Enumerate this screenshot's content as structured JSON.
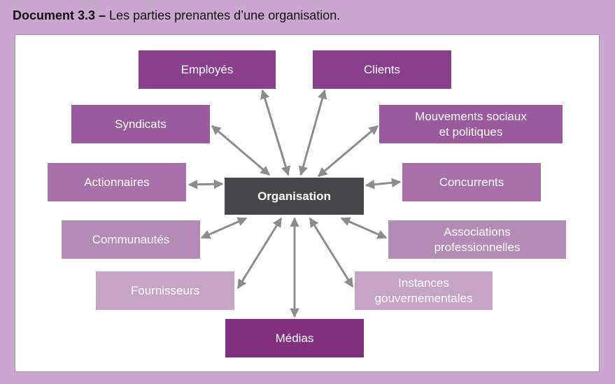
{
  "title": {
    "prefix": "Document 3.3 –",
    "text": " Les parties prenantes d’une organisation."
  },
  "center": {
    "label": "Organisation",
    "color": "#464648"
  },
  "nodes": [
    {
      "id": "employes",
      "lines": [
        "Employés"
      ],
      "color": "#8a3f8c"
    },
    {
      "id": "clients",
      "lines": [
        "Clients"
      ],
      "color": "#8a3f8c"
    },
    {
      "id": "syndicats",
      "lines": [
        "Syndicats"
      ],
      "color": "#9a5a9c"
    },
    {
      "id": "mouvements",
      "lines": [
        "Mouvements sociaux",
        "et politiques"
      ],
      "color": "#9a5a9c"
    },
    {
      "id": "actionnaires",
      "lines": [
        "Actionnaires"
      ],
      "color": "#a671a8"
    },
    {
      "id": "concurrents",
      "lines": [
        "Concurrents"
      ],
      "color": "#a671a8"
    },
    {
      "id": "communautes",
      "lines": [
        "Communautés"
      ],
      "color": "#b48ab6"
    },
    {
      "id": "associations",
      "lines": [
        "Associations",
        "professionnelles"
      ],
      "color": "#b48ab6"
    },
    {
      "id": "fournisseurs",
      "lines": [
        "Fournisseurs"
      ],
      "color": "#c7a3c8"
    },
    {
      "id": "instances",
      "lines": [
        "Instances",
        "gouvernementales"
      ],
      "color": "#c7a3c8"
    },
    {
      "id": "medias",
      "lines": [
        "Médias"
      ],
      "color": "#80307f"
    }
  ],
  "arrow_color": "#8c8c8c"
}
